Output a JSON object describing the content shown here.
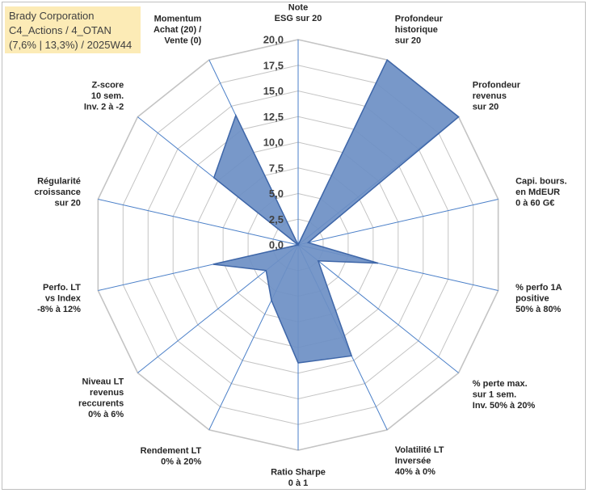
{
  "title": {
    "line1": "Brady Corporation",
    "line2": "C4_Actions / 4_OTAN",
    "line3": "(7,6% | 13,3%) / 2025W44"
  },
  "colors": {
    "fill": "#6d8fc4",
    "stroke": "#3e66a8",
    "grid": "#c4c4c4",
    "spoke": "#4a7fc8",
    "title_bg": "#fcebb6"
  },
  "chart_data": {
    "type": "radar",
    "rmin": 0,
    "rmax": 20,
    "tick_step": 2.5,
    "tick_labels": [
      "0,0",
      "2,5",
      "5,0",
      "7,5",
      "10,0",
      "12,5",
      "15,0",
      "17,5",
      "20,0"
    ],
    "axes": [
      {
        "lines": [
          "Note",
          "ESG sur 20"
        ],
        "value": 0
      },
      {
        "lines": [
          "Profondeur",
          "historique",
          "sur 20"
        ],
        "value": 20
      },
      {
        "lines": [
          "Profondeur",
          "revenus",
          "sur 20"
        ],
        "value": 20
      },
      {
        "lines": [
          "Capi. bours.",
          "en MdEUR",
          "0 à 60 G€"
        ],
        "value": 1
      },
      {
        "lines": [
          "% perfo 1A",
          "positive",
          "50% à 80%"
        ],
        "value": 8
      },
      {
        "lines": [
          "% perte max.",
          "sur 1 sem.",
          "Inv. 50% à 20%"
        ],
        "value": 2.5
      },
      {
        "lines": [
          "Volatilité LT",
          "Inversée",
          "40% à 0%"
        ],
        "value": 12
      },
      {
        "lines": [
          "Ratio Sharpe",
          "0 à 1"
        ],
        "value": 11.5
      },
      {
        "lines": [
          "Rendement LT",
          "0% à 20%"
        ],
        "value": 6
      },
      {
        "lines": [
          "Niveau LT",
          "revenus",
          "reccurents",
          "0% à 6%"
        ],
        "value": 4
      },
      {
        "lines": [
          "Perfo. LT",
          "vs Index",
          "-8% à 12%"
        ],
        "value": 8.5
      },
      {
        "lines": [
          "Régularité",
          "croissance",
          "sur 20"
        ],
        "value": 0
      },
      {
        "lines": [
          "Z-score",
          "10 sem.",
          "Inv. 2 à -2"
        ],
        "value": 10.5
      },
      {
        "lines": [
          "Momentum",
          "Achat (20) /",
          "Vente (0)"
        ],
        "value": 14
      }
    ]
  }
}
